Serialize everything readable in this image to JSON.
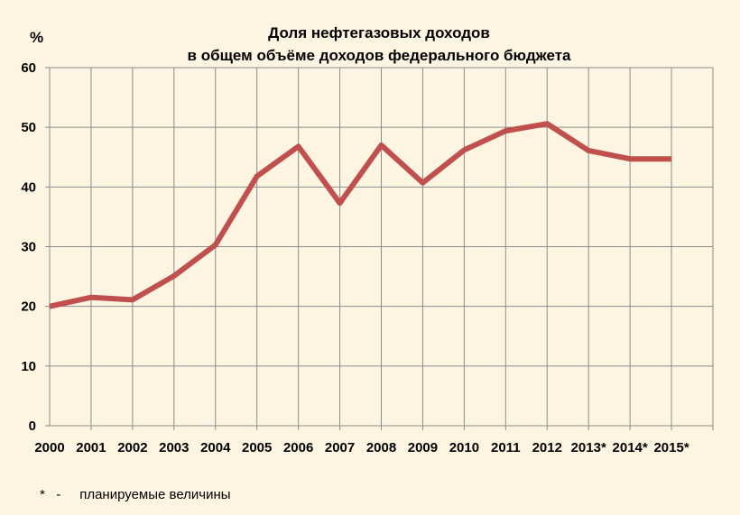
{
  "chart_data": {
    "type": "line",
    "title_lines": [
      "Доля нефтегазовых доходов",
      "в общем объёме доходов федерального бюджета"
    ],
    "ylabel": "%",
    "xlabel": "",
    "ylim": [
      0,
      60
    ],
    "yticks": [
      "0",
      "10",
      "20",
      "30",
      "40",
      "50",
      "60"
    ],
    "categories": [
      "2000",
      "2001",
      "2002",
      "2003",
      "2004",
      "2005",
      "2006",
      "2007",
      "2008",
      "2009",
      "2010",
      "2011",
      "2012",
      "2013*",
      "2014*",
      "2015*"
    ],
    "series": [
      {
        "values": [
          20.0,
          21.5,
          21.1,
          25.1,
          30.3,
          41.8,
          46.8,
          37.3,
          47.0,
          40.7,
          46.2,
          49.4,
          50.6,
          46.1,
          44.7,
          44.7
        ],
        "color": "#c0504d"
      }
    ],
    "grid": true
  },
  "footnote": {
    "marker": "*",
    "dash": "-",
    "text": "планируемые величины"
  }
}
